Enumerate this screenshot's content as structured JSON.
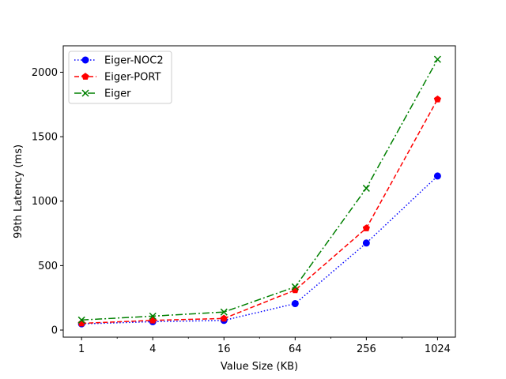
{
  "chart_data": {
    "type": "line",
    "xscale": "log2",
    "xlabel": "Value Size (KB)",
    "ylabel": "99th Latency (ms)",
    "xticks": [
      1,
      4,
      16,
      64,
      256,
      1024
    ],
    "xtick_labels": [
      "1",
      "4",
      "16",
      "64",
      "256",
      "1024"
    ],
    "yticks": [
      0,
      500,
      1000,
      1500,
      2000
    ],
    "yrange": [
      -55,
      2205
    ],
    "xrange": [
      0.7,
      1450
    ],
    "grid": false,
    "legend_position": "upper-left",
    "x": [
      1,
      4,
      16,
      64,
      256,
      1024
    ],
    "series": [
      {
        "name": "Eiger-NOC2",
        "values": [
          48,
          65,
          75,
          205,
          675,
          1195
        ],
        "color": "#0000ff",
        "linestyle": "dotted",
        "marker": "circle"
      },
      {
        "name": "Eiger-PORT",
        "values": [
          52,
          75,
          90,
          310,
          790,
          1790
        ],
        "color": "#ff0000",
        "linestyle": "dashed",
        "marker": "pentagon"
      },
      {
        "name": "Eiger",
        "values": [
          78,
          108,
          140,
          335,
          1100,
          2100
        ],
        "color": "#008000",
        "linestyle": "dashdot",
        "marker": "x"
      }
    ]
  }
}
